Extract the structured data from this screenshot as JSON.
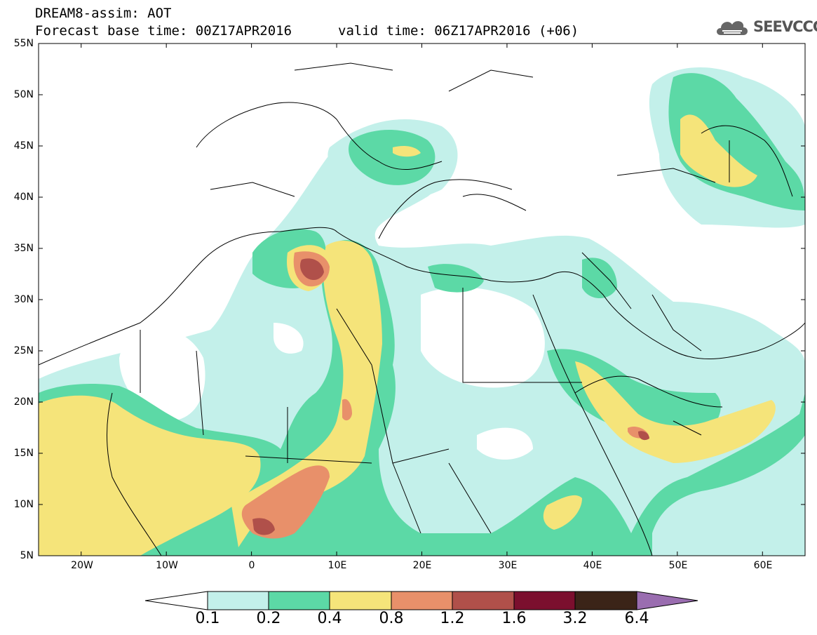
{
  "header": {
    "title": "DREAM8-assim: AOT",
    "base_time": "Forecast base time: 00Z17APR2016",
    "valid_time": "valid time: 06Z17APR2016 (+06)",
    "logo_text": "SEEVCCC",
    "logo_icon": "cloud-logo-icon"
  },
  "map": {
    "lat_range": [
      5,
      55
    ],
    "lon_range": [
      -25,
      65
    ],
    "lat_labels": [
      "55N",
      "50N",
      "45N",
      "40N",
      "35N",
      "30N",
      "25N",
      "20N",
      "15N",
      "10N",
      "5N"
    ],
    "lon_labels": [
      "20W",
      "10W",
      "0",
      "10E",
      "20E",
      "30E",
      "40E",
      "50E",
      "60E"
    ]
  },
  "colorbar": {
    "labels": [
      "0.1",
      "0.2",
      "0.4",
      "0.8",
      "1.2",
      "1.6",
      "3.2",
      "6.4"
    ],
    "colors": [
      "#ffffff",
      "#c3f0ea",
      "#5cd9a6",
      "#f5e47a",
      "#e8906a",
      "#b0504a",
      "#7b0f2e",
      "#3b2418",
      "#9a6db0"
    ]
  }
}
